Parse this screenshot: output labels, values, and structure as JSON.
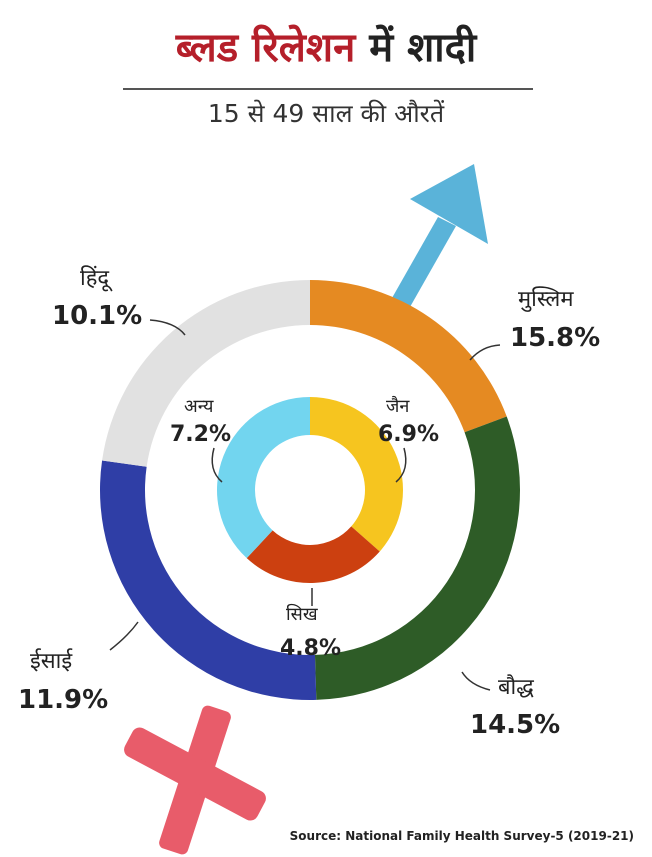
{
  "title_part1": "ब्लड रिलेशन",
  "title_part2": "में शादी",
  "subtitle": "15 से 49 साल की औरतें",
  "source": "Source: National Family Health Survey-5 (2019-21)",
  "colors": {
    "title_red": "#b51f2a",
    "arrow": "#5ab3d9",
    "cross": "#e85c6a"
  },
  "chart_data": [
    {
      "type": "pie",
      "ring": "outer",
      "categories": [
        "हिंदू",
        "मुस्लिम",
        "बौद्ध",
        "ईसाई"
      ],
      "values": [
        10.1,
        15.8,
        14.5,
        11.9
      ],
      "labels": [
        "10.1%",
        "15.8%",
        "14.5%",
        "11.9%"
      ],
      "colors": [
        "#e58a22",
        "#2e5c27",
        "#2f3ea6",
        "#e1e1e1"
      ]
    },
    {
      "type": "pie",
      "ring": "inner",
      "categories": [
        "जैन",
        "सिख",
        "अन्य"
      ],
      "values": [
        6.9,
        4.8,
        7.2
      ],
      "labels": [
        "6.9%",
        "4.8%",
        "7.2%"
      ],
      "colors": [
        "#f6c51f",
        "#cc4010",
        "#72d5ef"
      ]
    }
  ]
}
